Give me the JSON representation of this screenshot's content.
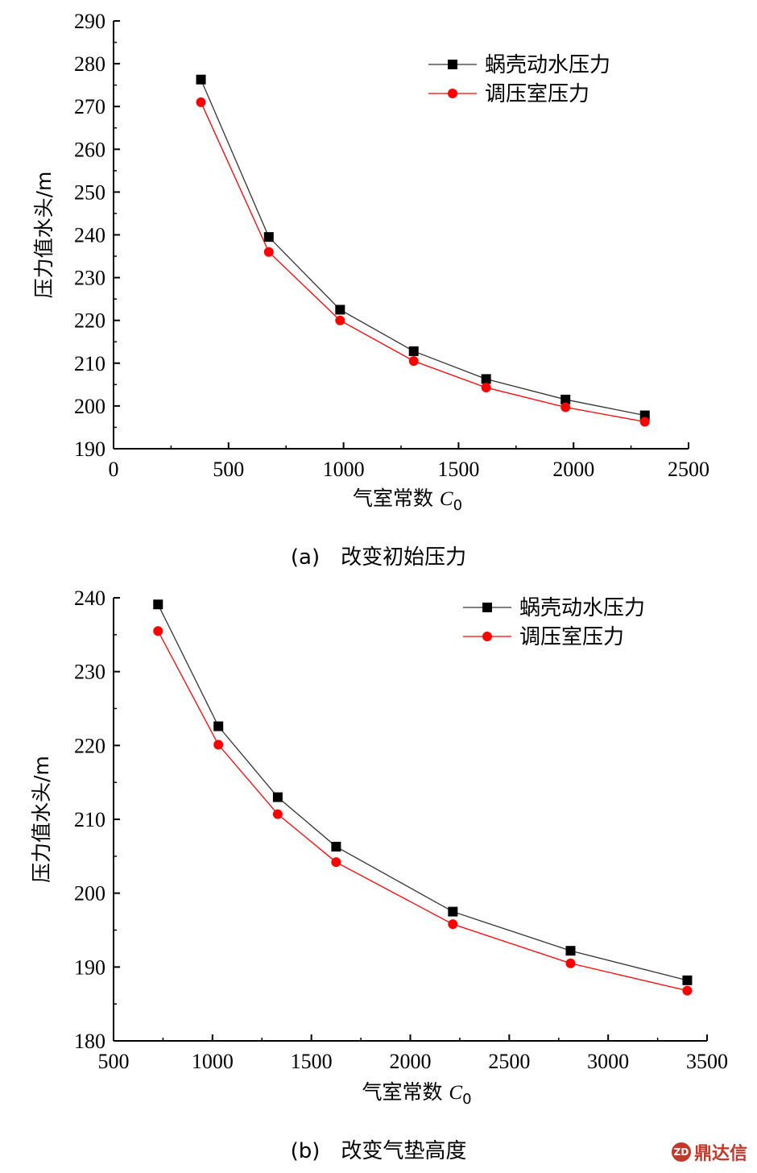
{
  "chart_data": [
    {
      "type": "line",
      "caption": "(a)　改变初始压力",
      "ylabel": "压力值水头/m",
      "xlabel_main": "气室常数 ",
      "xlabel_var": "C",
      "xlabel_sub": "0",
      "xlim": [
        0,
        2500
      ],
      "ylim": [
        190,
        290
      ],
      "xticks": [
        0,
        500,
        1000,
        1500,
        2000,
        2500
      ],
      "yticks": [
        190,
        200,
        210,
        220,
        230,
        240,
        250,
        260,
        270,
        280,
        290
      ],
      "legend_position": "top-right",
      "series": [
        {
          "name": "蜗壳动水压力",
          "color": "#000000",
          "marker": "square",
          "x": [
            380,
            675,
            985,
            1305,
            1620,
            1965,
            2310
          ],
          "y": [
            276.3,
            239.5,
            222.5,
            212.8,
            206.3,
            201.5,
            197.8
          ]
        },
        {
          "name": "调压室压力",
          "color": "#ff0000",
          "marker": "circle",
          "x": [
            380,
            675,
            985,
            1305,
            1620,
            1965,
            2310
          ],
          "y": [
            271.0,
            236.0,
            220.0,
            210.5,
            204.3,
            199.7,
            196.3
          ]
        }
      ]
    },
    {
      "type": "line",
      "caption": "(b)　改变气垫高度",
      "ylabel": "压力值水头/m",
      "xlabel_main": "气室常数 ",
      "xlabel_var": "C",
      "xlabel_sub": "0",
      "xlim": [
        500,
        3500
      ],
      "ylim": [
        180,
        240
      ],
      "xticks": [
        500,
        1000,
        1500,
        2000,
        2500,
        3000,
        3500
      ],
      "yticks": [
        180,
        190,
        200,
        210,
        220,
        230,
        240
      ],
      "legend_position": "top-right",
      "series": [
        {
          "name": "蜗壳动水压力",
          "color": "#000000",
          "marker": "square",
          "x": [
            725,
            1030,
            1330,
            1625,
            2215,
            2810,
            3400
          ],
          "y": [
            239.1,
            222.6,
            213.0,
            206.3,
            197.5,
            192.2,
            188.2
          ]
        },
        {
          "name": "调压室压力",
          "color": "#ff0000",
          "marker": "circle",
          "x": [
            725,
            1030,
            1330,
            1625,
            2215,
            2810,
            3400
          ],
          "y": [
            235.5,
            220.1,
            210.7,
            204.2,
            195.8,
            190.5,
            186.8
          ]
        }
      ]
    }
  ],
  "watermark": {
    "logo": "ZD",
    "text": "鼎达信"
  }
}
